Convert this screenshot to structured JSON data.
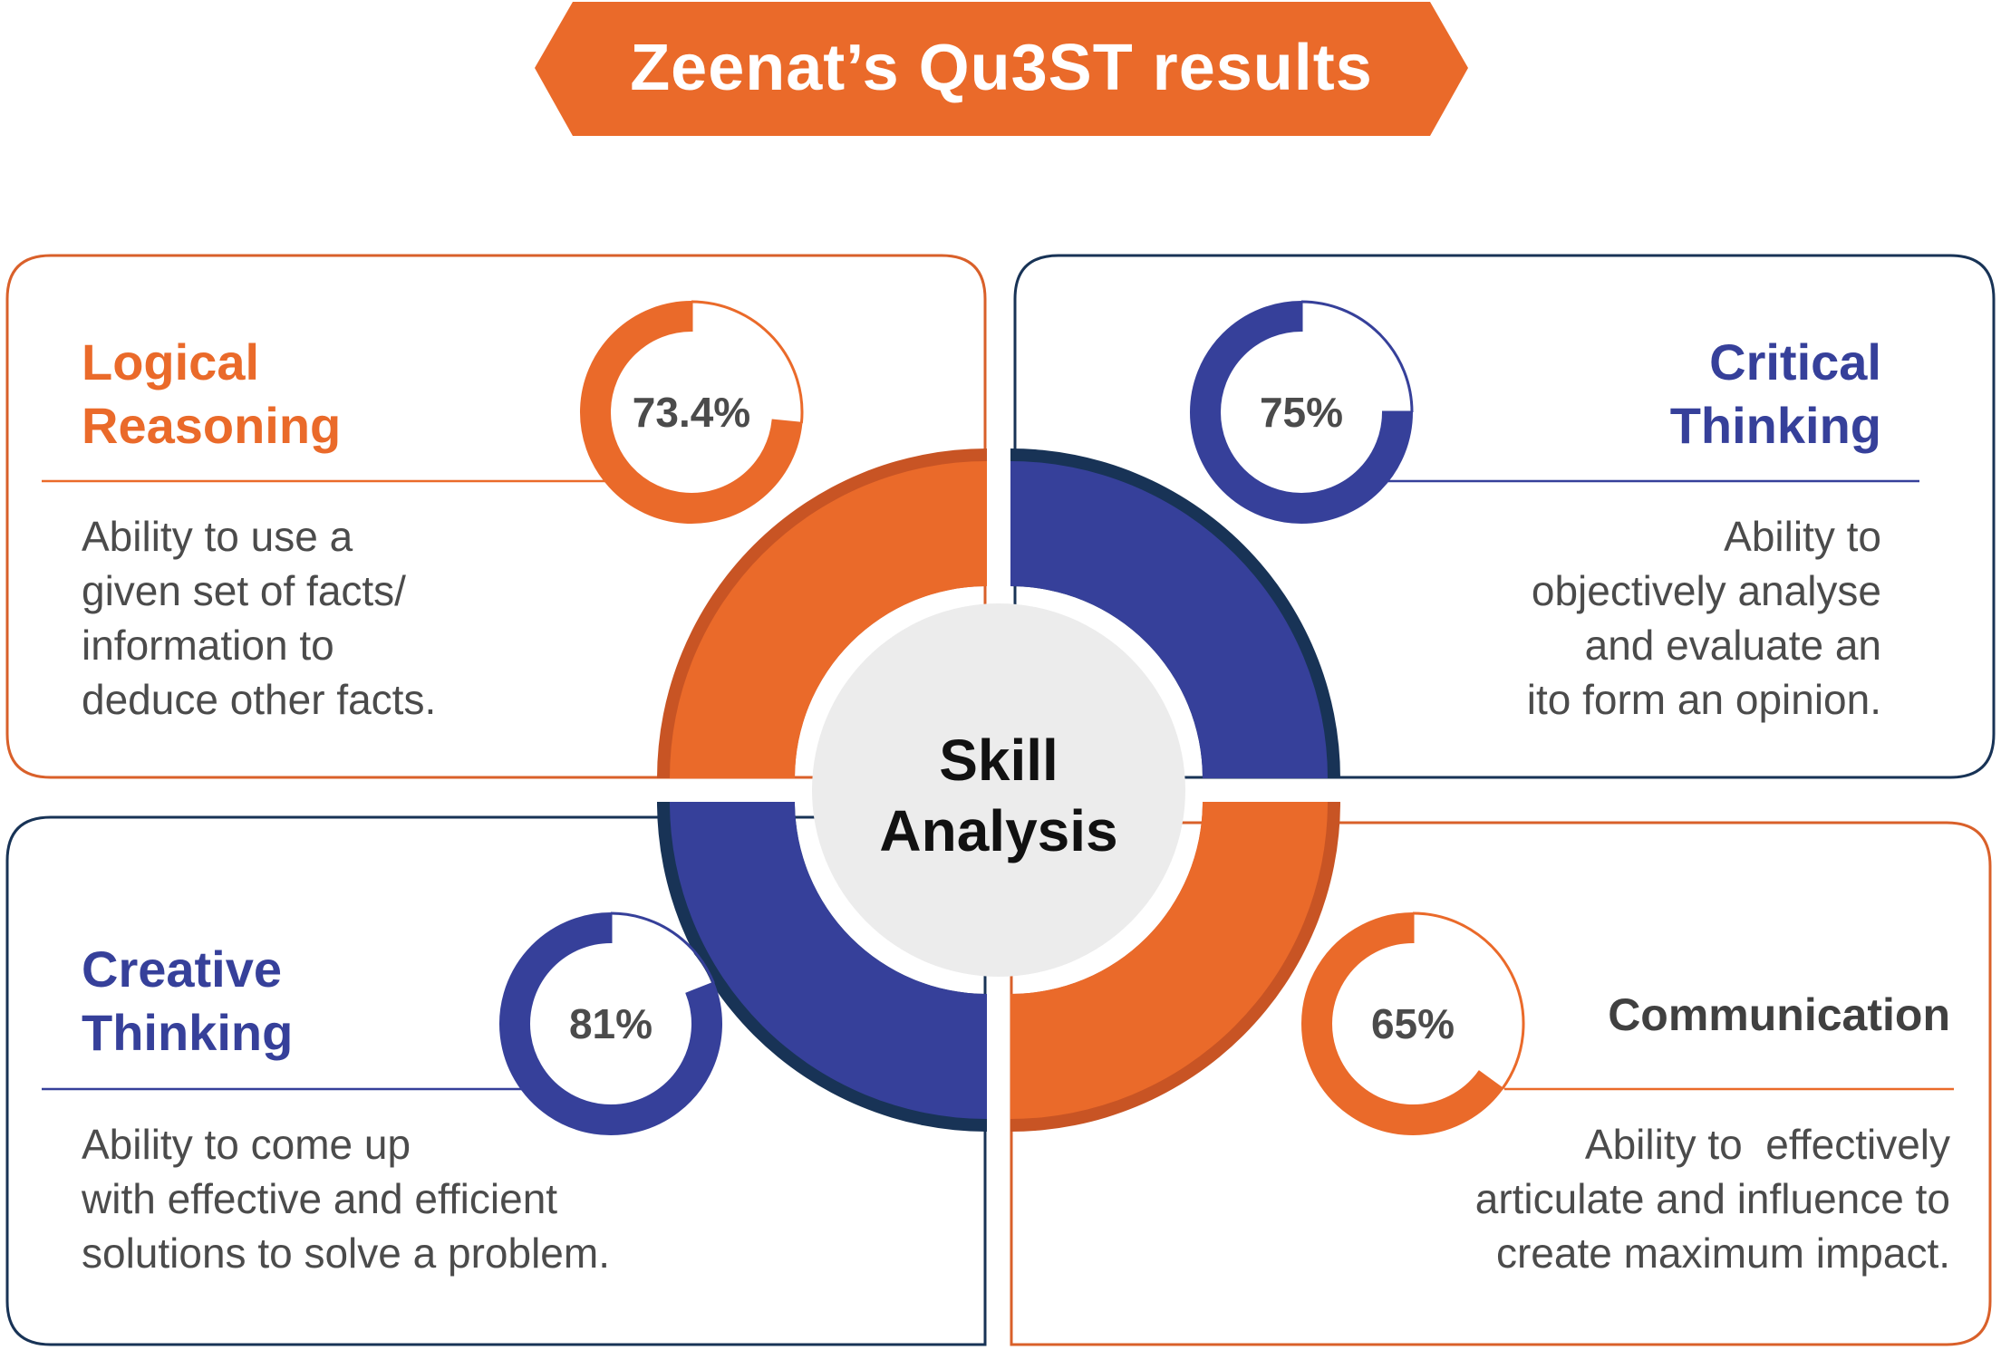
{
  "header": {
    "title": "Zeenat’s Qu3ST results"
  },
  "center": {
    "line1": "Skill",
    "line2": "Analysis"
  },
  "colors": {
    "orange": "#EA6A2A",
    "blue": "#36409A",
    "navy": "#183356",
    "center_fill": "#ECECEC"
  },
  "skills": [
    {
      "title_lines": [
        "Logical",
        "Reasoning"
      ],
      "value": 73.4,
      "value_label": "73.4%",
      "description_lines": [
        "Ability to use a",
        "given set of facts/",
        "information to",
        "deduce other facts."
      ]
    },
    {
      "title_lines": [
        "Critical",
        "Thinking"
      ],
      "value": 75,
      "value_label": "75%",
      "description_lines": [
        "Ability to",
        "objectively analyse",
        "and evaluate an",
        "ito form an opinion."
      ]
    },
    {
      "title_lines": [
        "Creative",
        "Thinking"
      ],
      "value": 81,
      "value_label": "81%",
      "description_lines": [
        "Ability to come up",
        "with effective and efficient",
        "solutions to solve a problem."
      ]
    },
    {
      "title_lines": [
        "Communication"
      ],
      "value": 65,
      "value_label": "65%",
      "description_lines": [
        "Ability to  effectively",
        "articulate and influence to",
        "create maximum impact."
      ]
    }
  ]
}
